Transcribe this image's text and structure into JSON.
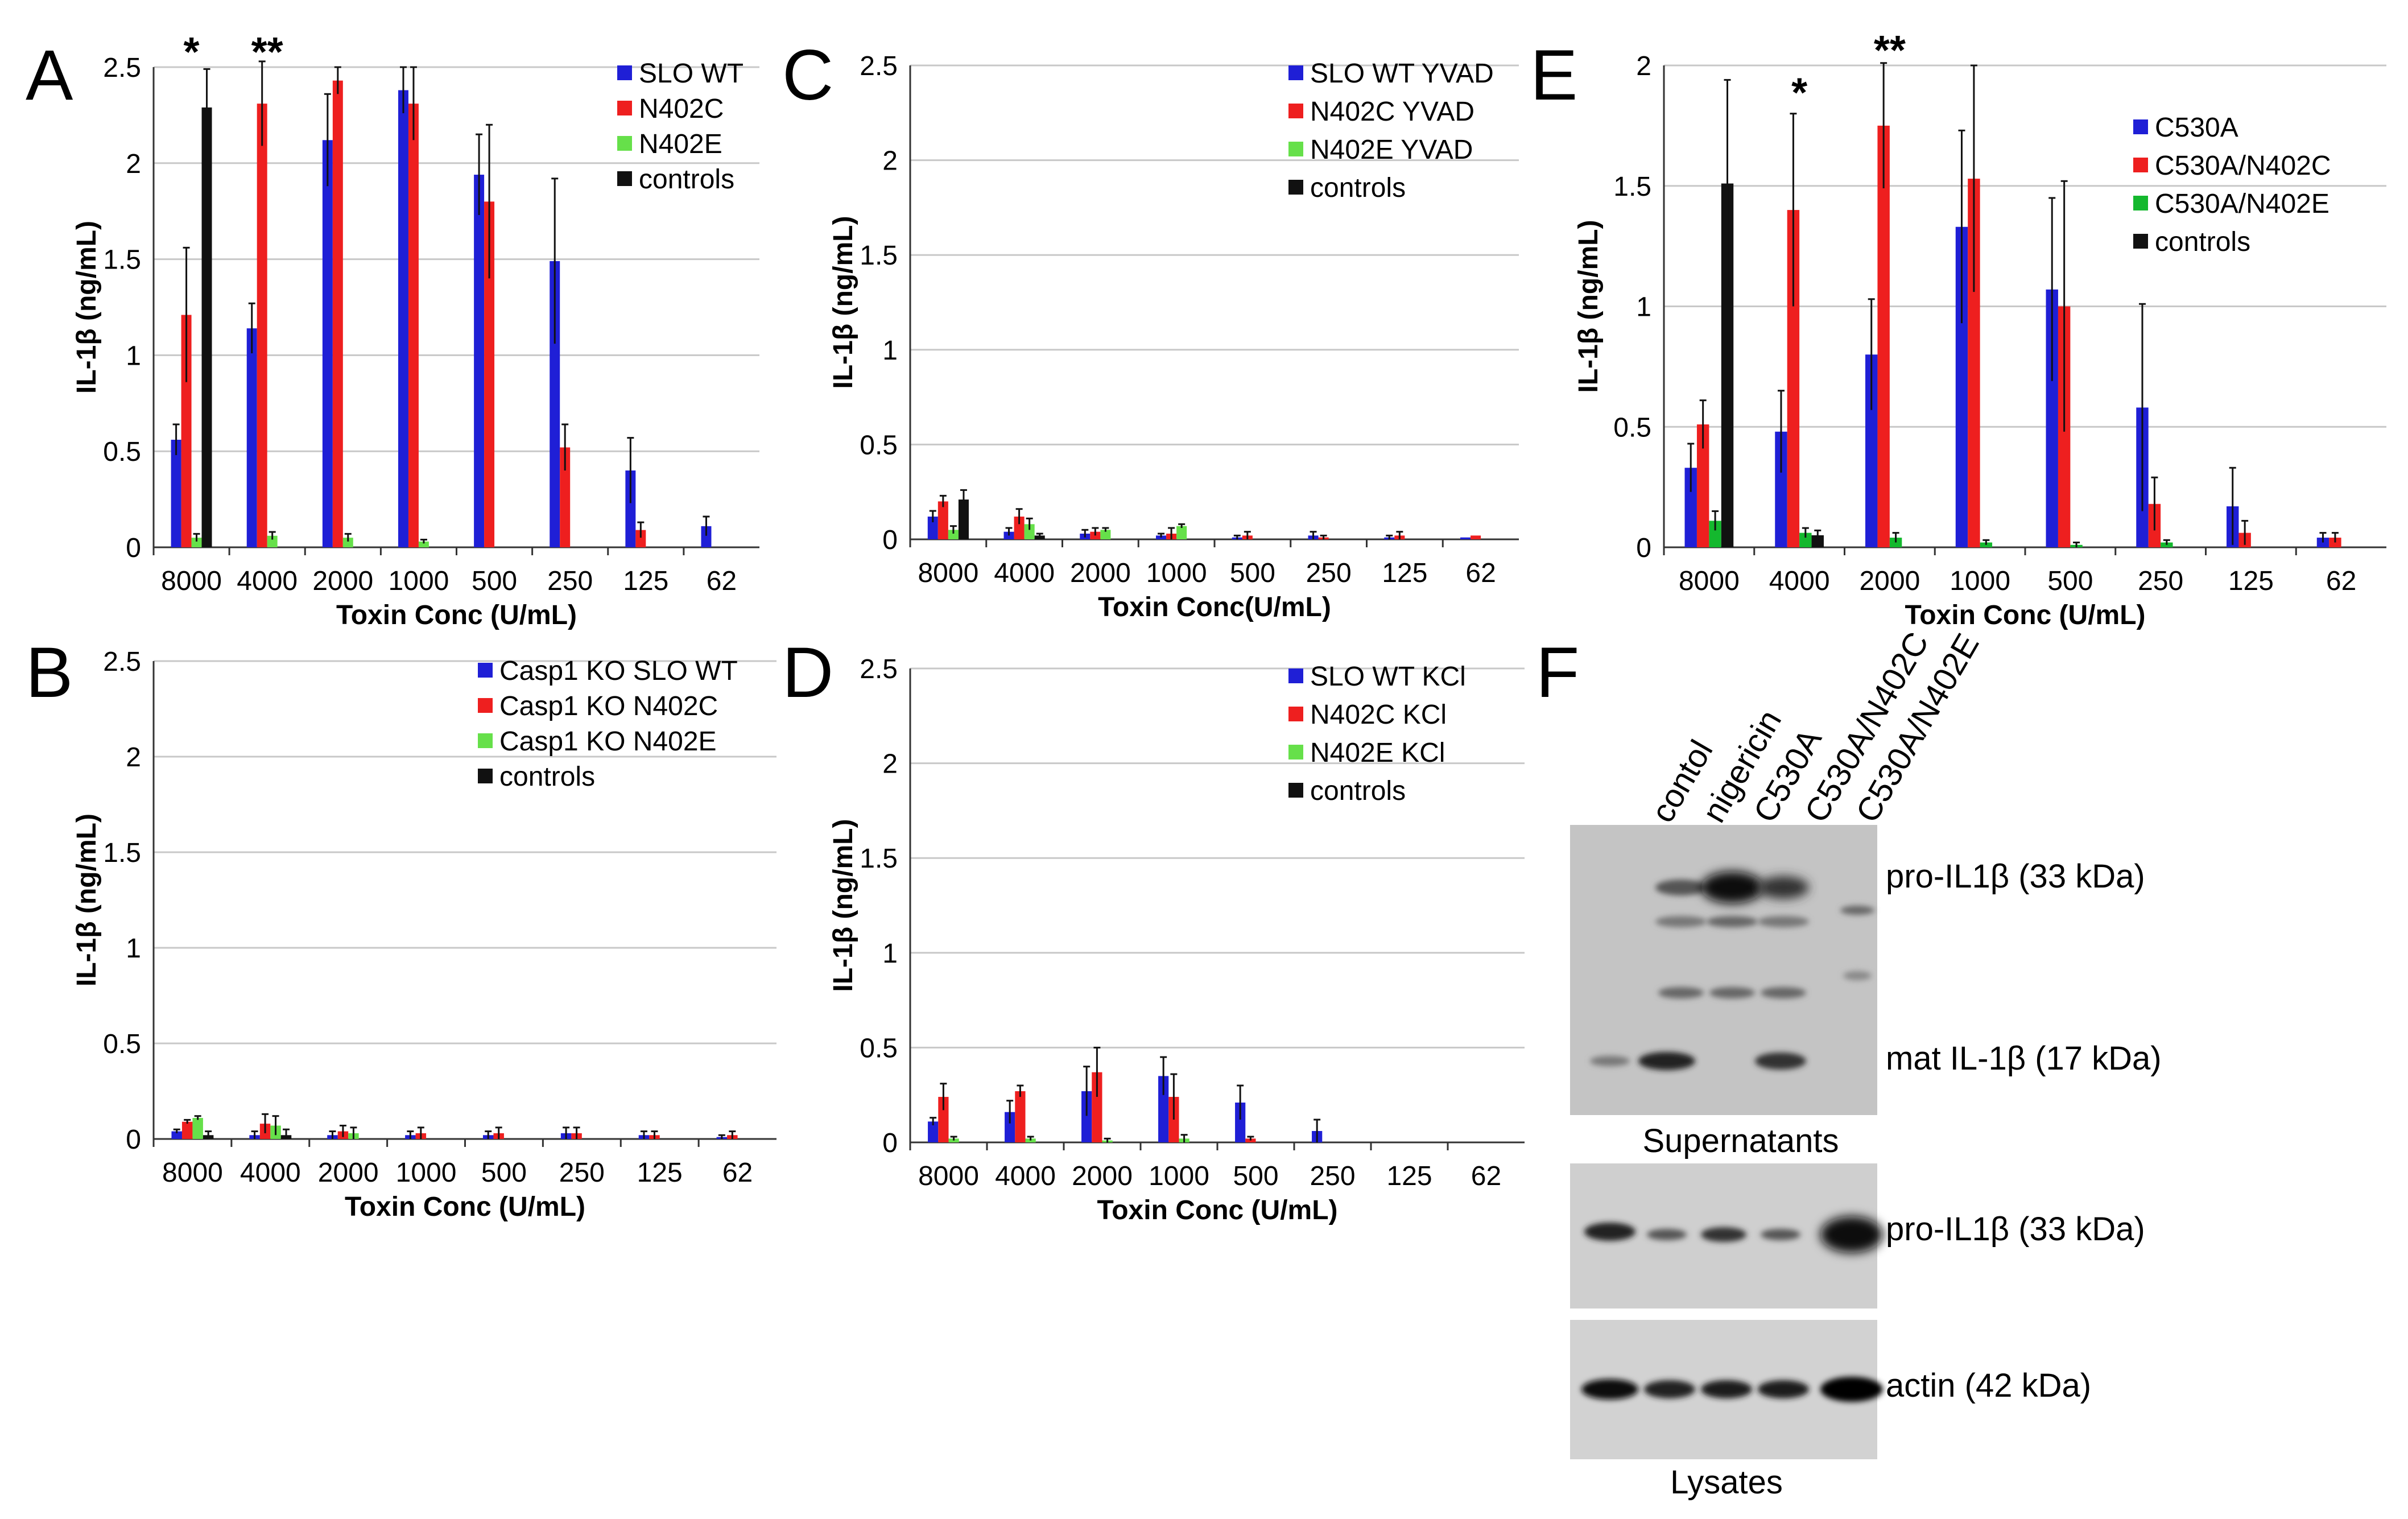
{
  "figure": {
    "panels": [
      "A",
      "B",
      "C",
      "D",
      "E",
      "F"
    ]
  },
  "colors": {
    "blue": "#1f1fd6",
    "red": "#ee1f1f",
    "green_light": "#66e04a",
    "green_dark": "#14b82e",
    "black": "#111111",
    "grid": "#c8c8c8",
    "axis": "#333333"
  },
  "chart_data": [
    {
      "panel": "A",
      "type": "bar",
      "categories": [
        "8000",
        "4000",
        "2000",
        "1000",
        "500",
        "250",
        "125",
        "62"
      ],
      "xlabel": "Toxin Conc (U/mL)",
      "ylabel": "IL-1β (ng/mL)",
      "ylim": [
        0,
        2.5
      ],
      "yticks": [
        "0",
        "0.5",
        "1",
        "1.5",
        "2",
        "2.5"
      ],
      "grid": true,
      "legend_placement": "top-right",
      "series": [
        {
          "name": "SLO WT",
          "color": "blue",
          "values": [
            0.56,
            1.14,
            2.12,
            2.38,
            1.94,
            1.49,
            0.4,
            0.11
          ],
          "errors": [
            0.08,
            0.13,
            0.24,
            0.12,
            0.21,
            0.43,
            0.17,
            0.05
          ]
        },
        {
          "name": "N402C",
          "color": "red",
          "values": [
            1.21,
            2.31,
            2.43,
            2.31,
            1.8,
            0.52,
            0.09,
            0
          ],
          "errors": [
            0.35,
            0.22,
            0.07,
            0.19,
            0.4,
            0.12,
            0.04,
            0
          ]
        },
        {
          "name": "N402E",
          "color": "green_light",
          "values": [
            0.05,
            0.06,
            0.05,
            0.03,
            0,
            0,
            0,
            0
          ],
          "errors": [
            0.02,
            0.02,
            0.02,
            0.01,
            0,
            0,
            0,
            0
          ]
        },
        {
          "name": "controls",
          "color": "black",
          "values": [
            2.29,
            0,
            0,
            0,
            0,
            0,
            0,
            0
          ],
          "errors": [
            0.2,
            0,
            0,
            0,
            0,
            0,
            0,
            0
          ]
        }
      ],
      "annotations": [
        {
          "text": "*",
          "category": "8000"
        },
        {
          "text": "**",
          "category": "4000"
        }
      ]
    },
    {
      "panel": "B",
      "type": "bar",
      "categories": [
        "8000",
        "4000",
        "2000",
        "1000",
        "500",
        "250",
        "125",
        "62"
      ],
      "xlabel": "Toxin Conc (U/mL)",
      "ylabel": "IL-1β (ng/mL)",
      "ylim": [
        0,
        2.5
      ],
      "yticks": [
        "0",
        "0.5",
        "1",
        "1.5",
        "2",
        "2.5"
      ],
      "grid": true,
      "legend_placement": "top-right",
      "series": [
        {
          "name": "Casp1 KO SLO WT",
          "color": "blue",
          "values": [
            0.04,
            0.02,
            0.02,
            0.02,
            0.02,
            0.03,
            0.02,
            0.01
          ],
          "errors": [
            0.01,
            0.02,
            0.02,
            0.02,
            0.02,
            0.03,
            0.02,
            0.01
          ]
        },
        {
          "name": "Casp1 KO N402C",
          "color": "red",
          "values": [
            0.09,
            0.08,
            0.04,
            0.03,
            0.03,
            0.03,
            0.02,
            0.02
          ],
          "errors": [
            0.01,
            0.05,
            0.03,
            0.03,
            0.03,
            0.03,
            0.02,
            0.02
          ]
        },
        {
          "name": "Casp1 KO N402E",
          "color": "green_light",
          "values": [
            0.11,
            0.07,
            0.03,
            0,
            0,
            0,
            0,
            0
          ],
          "errors": [
            0.01,
            0.05,
            0.03,
            0,
            0,
            0,
            0,
            0
          ]
        },
        {
          "name": "controls",
          "color": "black",
          "values": [
            0.02,
            0.02,
            0,
            0,
            0,
            0,
            0,
            0
          ],
          "errors": [
            0.02,
            0.03,
            0,
            0,
            0,
            0,
            0,
            0
          ]
        }
      ]
    },
    {
      "panel": "C",
      "type": "bar",
      "categories": [
        "8000",
        "4000",
        "2000",
        "1000",
        "500",
        "250",
        "125",
        "62"
      ],
      "xlabel": "Toxin Conc(U/mL)",
      "ylabel": "IL-1β (ng/mL)",
      "ylim": [
        0,
        2.5
      ],
      "yticks": [
        "0",
        "0.5",
        "1",
        "1.5",
        "2",
        "2.5"
      ],
      "grid": true,
      "legend_placement": "top-right",
      "series": [
        {
          "name": "SLO WT YVAD",
          "color": "blue",
          "values": [
            0.12,
            0.04,
            0.03,
            0.02,
            0.01,
            0.02,
            0.01,
            0.01
          ],
          "errors": [
            0.03,
            0.02,
            0.02,
            0.01,
            0.01,
            0.02,
            0.01,
            0
          ]
        },
        {
          "name": "N402C YVAD",
          "color": "red",
          "values": [
            0.2,
            0.12,
            0.04,
            0.03,
            0.02,
            0.01,
            0.02,
            0.02
          ],
          "errors": [
            0.03,
            0.04,
            0.02,
            0.03,
            0.02,
            0.01,
            0.02,
            0
          ]
        },
        {
          "name": "N402E YVAD",
          "color": "green_light",
          "values": [
            0.05,
            0.08,
            0.05,
            0.07,
            0,
            0,
            0,
            0
          ],
          "errors": [
            0.02,
            0.03,
            0.01,
            0.01,
            0,
            0,
            0,
            0
          ]
        },
        {
          "name": "controls",
          "color": "black",
          "values": [
            0.21,
            0.02,
            0,
            0,
            0,
            0,
            0,
            0
          ],
          "errors": [
            0.05,
            0.01,
            0,
            0,
            0,
            0,
            0,
            0
          ]
        }
      ]
    },
    {
      "panel": "D",
      "type": "bar",
      "categories": [
        "8000",
        "4000",
        "2000",
        "1000",
        "500",
        "250",
        "125",
        "62"
      ],
      "xlabel": "Toxin Conc (U/mL)",
      "ylabel": "IL-1β (ng/mL)",
      "ylim": [
        0,
        2.5
      ],
      "yticks": [
        "0",
        "0.5",
        "1",
        "1.5",
        "2",
        "2.5"
      ],
      "grid": true,
      "legend_placement": "top-right",
      "series": [
        {
          "name": "SLO WT KCl",
          "color": "blue",
          "values": [
            0.11,
            0.16,
            0.27,
            0.35,
            0.21,
            0.06,
            0,
            0
          ],
          "errors": [
            0.02,
            0.06,
            0.13,
            0.1,
            0.09,
            0.06,
            0,
            0
          ]
        },
        {
          "name": "N402C KCl",
          "color": "red",
          "values": [
            0.24,
            0.27,
            0.37,
            0.24,
            0.02,
            0,
            0,
            0
          ],
          "errors": [
            0.07,
            0.03,
            0.13,
            0.12,
            0.01,
            0,
            0,
            0
          ]
        },
        {
          "name": "N402E KCl",
          "color": "green_light",
          "values": [
            0.02,
            0.02,
            0.01,
            0.02,
            0,
            0,
            0,
            0
          ],
          "errors": [
            0.01,
            0.01,
            0.01,
            0.02,
            0,
            0,
            0,
            0
          ]
        },
        {
          "name": "controls",
          "color": "black",
          "values": [
            0,
            0,
            0,
            0,
            0,
            0,
            0,
            0
          ],
          "errors": [
            0,
            0,
            0,
            0,
            0,
            0,
            0,
            0
          ]
        }
      ]
    },
    {
      "panel": "E",
      "type": "bar",
      "categories": [
        "8000",
        "4000",
        "2000",
        "1000",
        "500",
        "250",
        "125",
        "62"
      ],
      "xlabel": "Toxin Conc (U/mL)",
      "ylabel": "IL-1β (ng/mL)",
      "ylim": [
        0,
        2
      ],
      "yticks": [
        "0",
        "0.5",
        "1",
        "1.5",
        "2"
      ],
      "grid": true,
      "legend_placement": "top-right",
      "series": [
        {
          "name": "C530A",
          "color": "blue",
          "values": [
            0.33,
            0.48,
            0.8,
            1.33,
            1.07,
            0.58,
            0.17,
            0.04
          ],
          "errors": [
            0.1,
            0.17,
            0.23,
            0.4,
            0.38,
            0.43,
            0.16,
            0.02
          ]
        },
        {
          "name": "C530A/N402C",
          "color": "red",
          "values": [
            0.51,
            1.4,
            1.75,
            1.53,
            1.0,
            0.18,
            0.06,
            0.04
          ],
          "errors": [
            0.1,
            0.4,
            0.26,
            0.47,
            0.52,
            0.11,
            0.05,
            0.02
          ]
        },
        {
          "name": "C530A/N402E",
          "color": "green_dark",
          "values": [
            0.11,
            0.06,
            0.04,
            0.02,
            0.01,
            0.02,
            0,
            0
          ],
          "errors": [
            0.04,
            0.02,
            0.02,
            0.01,
            0.01,
            0.01,
            0,
            0
          ]
        },
        {
          "name": "controls",
          "color": "black",
          "values": [
            1.51,
            0.05,
            0,
            0,
            0,
            0,
            0,
            0
          ],
          "errors": [
            0.43,
            0.02,
            0,
            0,
            0,
            0,
            0,
            0
          ]
        }
      ],
      "annotations": [
        {
          "text": "*",
          "category": "4000"
        },
        {
          "text": "**",
          "category": "2000"
        }
      ]
    }
  ],
  "blot": {
    "lanes": [
      "contol",
      "nigericin",
      "C530A",
      "C530A/N402C",
      "C530A/N402E"
    ],
    "supernatant_band_labels": [
      "pro-IL1β (33 kDa)",
      "mat IL-1β (17 kDa)"
    ],
    "supernatant_caption": "Supernatants",
    "lysate_band_labels": [
      "pro-IL1β (33 kDa)",
      "actin (42 kDa)"
    ],
    "lysate_caption": "Lysates"
  }
}
